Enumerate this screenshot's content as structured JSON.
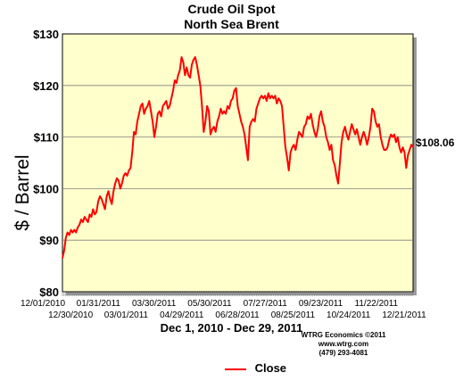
{
  "chart_data": {
    "type": "line",
    "title": "Crude Oil Spot",
    "subtitle": "North Sea Brent",
    "ylabel": "$ / Barrel",
    "xlabel": "Dec 1, 2010 - Dec 29, 2011",
    "ylim": [
      80,
      130
    ],
    "yticks": [
      "$80",
      "$90",
      "$100",
      "$110",
      "$120",
      "$130"
    ],
    "ytick_values": [
      80,
      90,
      100,
      110,
      120,
      130
    ],
    "xticks_upper": [
      "12/01/2010",
      "01/31/2011",
      "03/30/2011",
      "05/30/2011",
      "07/27/2011",
      "09/23/2011",
      "11/22/2011"
    ],
    "xticks_lower": [
      "12/30/2010",
      "03/01/2011",
      "04/29/2011",
      "06/28/2011",
      "08/25/2011",
      "10/24/2011",
      "12/21/2011"
    ],
    "grid": true,
    "background_color": "#ffffcc",
    "line_color": "#ff0000",
    "last_value_label": "$108.06",
    "series": [
      {
        "name": "Close",
        "values": [
          86.5,
          88,
          90.5,
          91.5,
          91,
          92,
          91.5,
          92,
          91.5,
          92.5,
          93,
          94,
          93.5,
          94.5,
          94,
          93.5,
          95,
          94.5,
          96,
          95,
          95.5,
          97.5,
          98.5,
          98,
          97,
          96,
          98.5,
          99.5,
          98,
          97,
          99.5,
          101,
          102,
          101.5,
          100,
          101,
          102.5,
          103,
          102.5,
          103.5,
          104,
          107,
          111,
          110.5,
          113,
          114.5,
          116,
          116.5,
          114.5,
          115.5,
          116,
          117,
          115,
          113,
          110,
          112,
          114.5,
          115,
          114,
          116,
          116.5,
          117,
          115.5,
          116,
          117.5,
          119,
          121,
          120.5,
          122,
          123,
          125.5,
          124.5,
          122,
          123.5,
          122,
          121.5,
          124,
          125,
          125.5,
          124,
          122,
          120,
          116,
          111,
          113,
          116,
          115,
          110.5,
          111.5,
          112,
          111,
          113,
          114,
          115.5,
          114.5,
          115,
          114.5,
          116,
          115.5,
          117,
          117.5,
          119,
          119.5,
          116,
          114.5,
          113,
          112,
          110.5,
          108,
          105.5,
          112,
          113,
          113.5,
          113,
          115.5,
          116.5,
          117.5,
          118,
          117.5,
          118,
          117,
          118.5,
          117.5,
          118,
          117.5,
          118,
          116.5,
          117.5,
          117,
          116,
          112,
          108,
          106,
          103.5,
          107,
          108,
          108.5,
          107.5,
          109.5,
          111,
          110.5,
          110,
          112,
          112.5,
          114,
          113.5,
          114.5,
          112.5,
          111,
          110,
          111.5,
          114,
          115,
          113,
          112,
          110,
          109,
          107.5,
          108.5,
          105.5,
          104.5,
          102.5,
          101,
          105,
          109,
          111,
          112,
          110.5,
          109.5,
          111,
          112.5,
          111.5,
          110.5,
          111.5,
          110,
          108.5,
          110,
          111,
          110,
          108.5,
          110,
          112,
          115.5,
          115,
          113,
          112,
          112.5,
          110,
          108.5,
          107.5,
          107.5,
          108,
          109.5,
          110.5,
          110,
          110.5,
          109,
          110,
          108,
          107,
          108,
          107,
          104,
          106.5,
          107.5,
          108.5,
          108.06
        ]
      }
    ]
  },
  "credits": [
    "WTRG Economics ©2011",
    "www.wtrg.com",
    "(479) 293-4081"
  ]
}
